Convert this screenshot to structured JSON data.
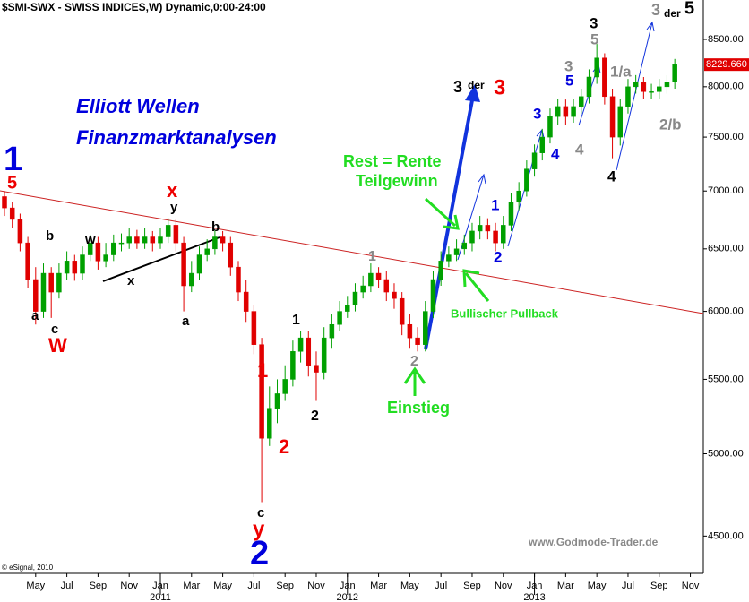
{
  "chart_data": {
    "type": "candlestick",
    "title": "$SMI-SWX - SWISS INDICES,W) Dynamic,0:00-24:00",
    "log_scale": true,
    "up_color": "#00a000",
    "down_color": "#e00000",
    "open": [
      6950,
      6850,
      6750,
      6550,
      6250,
      6000,
      6300,
      6150,
      6300,
      6400,
      6300,
      6450,
      6550,
      6400,
      6450,
      6550,
      6550,
      6600,
      6550,
      6600,
      6550,
      6600,
      6700,
      6550,
      6200,
      6300,
      6450,
      6500,
      6600,
      6550,
      6350,
      6150,
      6000,
      5750,
      5100,
      5300,
      5400,
      5500,
      5700,
      5800,
      5600,
      5550,
      5800,
      5900,
      6000,
      6050,
      6150,
      6200,
      6300,
      6250,
      6150,
      6100,
      5900,
      5800,
      5750,
      6000,
      6250,
      6400,
      6450,
      6500,
      6550,
      6650,
      6700,
      6650,
      6550,
      6700,
      6900,
      7000,
      7200,
      7350,
      7500,
      7700,
      7800,
      7700,
      7800,
      7900,
      8100,
      8300,
      7900,
      7500,
      7800,
      8000,
      8050,
      7950,
      7950,
      8000,
      8050
    ],
    "high": [
      7000,
      6900,
      6800,
      6600,
      6350,
      6380,
      6350,
      6380,
      6480,
      6450,
      6520,
      6620,
      6600,
      6550,
      6620,
      6630,
      6680,
      6660,
      6680,
      6650,
      6680,
      6760,
      6750,
      6600,
      6400,
      6520,
      6580,
      6660,
      6650,
      6600,
      6400,
      6250,
      6050,
      5800,
      5450,
      5500,
      5600,
      5780,
      5850,
      5850,
      5700,
      5880,
      5980,
      6080,
      6120,
      6220,
      6280,
      6380,
      6350,
      6320,
      6220,
      6150,
      5980,
      5880,
      6080,
      6320,
      6480,
      6520,
      6580,
      6620,
      6720,
      6780,
      6760,
      6720,
      6780,
      6980,
      7080,
      7280,
      7430,
      7580,
      7780,
      7880,
      7870,
      7880,
      7980,
      8180,
      8450,
      8350,
      7980,
      7880,
      8080,
      8120,
      8100,
      8030,
      8080,
      8120,
      8290
    ],
    "low": [
      6780,
      6680,
      6480,
      6180,
      5900,
      5950,
      5950,
      6100,
      6250,
      6240,
      6250,
      6400,
      6330,
      6350,
      6400,
      6480,
      6500,
      6500,
      6500,
      6480,
      6500,
      6550,
      6480,
      6000,
      6150,
      6250,
      6400,
      6450,
      6480,
      6280,
      6080,
      5920,
      5680,
      4700,
      5050,
      5200,
      5350,
      5450,
      5620,
      5520,
      5350,
      5500,
      5720,
      5850,
      5950,
      6000,
      6100,
      6150,
      6180,
      6080,
      6020,
      5820,
      5720,
      5700,
      5700,
      5950,
      6200,
      6350,
      6400,
      6450,
      6480,
      6580,
      6580,
      6480,
      6500,
      6650,
      6830,
      6950,
      7130,
      7280,
      7440,
      7620,
      7620,
      7640,
      7730,
      7830,
      8030,
      7820,
      7300,
      7420,
      7730,
      7930,
      7880,
      7880,
      7880,
      7930,
      7980
    ],
    "close": [
      6850,
      6750,
      6550,
      6250,
      6000,
      6300,
      6150,
      6300,
      6400,
      6300,
      6450,
      6550,
      6400,
      6450,
      6550,
      6550,
      6600,
      6550,
      6600,
      6550,
      6600,
      6700,
      6550,
      6200,
      6300,
      6450,
      6500,
      6600,
      6550,
      6350,
      6150,
      6000,
      5750,
      5100,
      5300,
      5400,
      5500,
      5700,
      5800,
      5600,
      5550,
      5800,
      5900,
      6000,
      6050,
      6150,
      6200,
      6300,
      6250,
      6150,
      6100,
      5900,
      5800,
      5750,
      6000,
      6250,
      6400,
      6450,
      6500,
      6550,
      6650,
      6700,
      6650,
      6550,
      6700,
      6900,
      7000,
      7200,
      7350,
      7500,
      7700,
      7800,
      7700,
      7800,
      7900,
      8100,
      8300,
      7900,
      7500,
      7800,
      8000,
      8050,
      7950,
      7950,
      8000,
      8050,
      8229.66
    ],
    "last_close_label": "8229.660",
    "ylim": [
      4290,
      8940
    ],
    "yticks": [
      {
        "value": 4500,
        "label": "4500.00"
      },
      {
        "value": 5000,
        "label": "5000.00"
      },
      {
        "value": 5500,
        "label": "5500.00"
      },
      {
        "value": 6000,
        "label": "6000.00"
      },
      {
        "value": 6500,
        "label": "6500.00"
      },
      {
        "value": 7000,
        "label": "7000.00"
      },
      {
        "value": 7500,
        "label": "7500.00"
      },
      {
        "value": 8000,
        "label": "8000.00"
      },
      {
        "value": 8500,
        "label": "8500.00"
      }
    ],
    "xlim": [
      -0.575,
      89.66
    ],
    "xticks": [
      {
        "value": 4,
        "label": "May"
      },
      {
        "value": 8,
        "label": "Jul"
      },
      {
        "value": 12,
        "label": "Sep"
      },
      {
        "value": 16,
        "label": "Nov"
      },
      {
        "value": 20,
        "label": "Jan"
      },
      {
        "value": 24,
        "label": "Mar"
      },
      {
        "value": 28,
        "label": "May"
      },
      {
        "value": 32,
        "label": "Jul"
      },
      {
        "value": 36,
        "label": "Sep"
      },
      {
        "value": 40,
        "label": "Nov"
      },
      {
        "value": 44,
        "label": "Jan"
      },
      {
        "value": 48,
        "label": "Mar"
      },
      {
        "value": 52,
        "label": "May"
      },
      {
        "value": 56,
        "label": "Jul"
      },
      {
        "value": 60,
        "label": "Sep"
      },
      {
        "value": 64,
        "label": "Nov"
      },
      {
        "value": 68,
        "label": "Jan"
      },
      {
        "value": 72,
        "label": "Mar"
      },
      {
        "value": 76,
        "label": "May"
      },
      {
        "value": 80,
        "label": "Jul"
      },
      {
        "value": 84,
        "label": "Sep"
      },
      {
        "value": 88,
        "label": "Nov"
      }
    ],
    "year_ticks": [
      {
        "value": 20,
        "label": "2011"
      },
      {
        "value": 44,
        "label": "2012"
      },
      {
        "value": 68,
        "label": "2013"
      }
    ],
    "annotations": [
      {
        "text": "Elliott Wellen",
        "color": "#0000dd"
      },
      {
        "text": "Finanzmarktanalysen",
        "color": "#0000dd"
      },
      {
        "text": "1",
        "color": "#0000dd"
      },
      {
        "text": "5",
        "color": "#ee0000"
      },
      {
        "text": "a",
        "color": "#000000"
      },
      {
        "text": "c",
        "color": "#000000"
      },
      {
        "text": "W",
        "color": "#ee0000"
      },
      {
        "text": "b",
        "color": "#000000"
      },
      {
        "text": "w",
        "color": "#000000"
      },
      {
        "text": "x",
        "color": "#000000"
      },
      {
        "text": "y",
        "color": "#000000"
      },
      {
        "text": "x",
        "color": "#ee0000"
      },
      {
        "text": "b",
        "color": "#000000"
      },
      {
        "text": "a",
        "color": "#000000"
      },
      {
        "text": "1",
        "color": "#ee0000"
      },
      {
        "text": "c",
        "color": "#000000"
      },
      {
        "text": "y",
        "color": "#ee0000"
      },
      {
        "text": "2",
        "color": "#0000dd"
      },
      {
        "text": "2",
        "color": "#ee0000"
      },
      {
        "text": "1",
        "color": "#000000"
      },
      {
        "text": "2",
        "color": "#000000"
      },
      {
        "text": "1",
        "color": "#888888"
      },
      {
        "text": "2",
        "color": "#888888"
      },
      {
        "text": "Einstieg",
        "color": "#22dd22"
      },
      {
        "text": "Bullischer Pullback",
        "color": "#22dd22"
      },
      {
        "text": "Rest = Rente",
        "color": "#22dd22"
      },
      {
        "text": "Teilgewinn",
        "color": "#22dd22"
      },
      {
        "text": "1",
        "color": "#0000dd"
      },
      {
        "text": "2",
        "color": "#0000dd"
      },
      {
        "text": "3",
        "color": "#000000"
      },
      {
        "text": "der",
        "color": "#000000"
      },
      {
        "text": "3",
        "color": "#ee0000"
      },
      {
        "text": "3",
        "color": "#0000dd"
      },
      {
        "text": "4",
        "color": "#0000dd"
      },
      {
        "text": "5",
        "color": "#0000dd"
      },
      {
        "text": "3",
        "color": "#888888"
      },
      {
        "text": "4",
        "color": "#888888"
      },
      {
        "text": "3",
        "color": "#000000"
      },
      {
        "text": "5",
        "color": "#888888"
      },
      {
        "text": "1/a",
        "color": "#888888"
      },
      {
        "text": "2/b",
        "color": "#888888"
      },
      {
        "text": "4",
        "color": "#000000"
      },
      {
        "text": "3",
        "color": "#888888"
      },
      {
        "text": "der",
        "color": "#000000"
      },
      {
        "text": "5",
        "color": "#000000"
      }
    ],
    "watermark": "www.Godmode-Trader.de",
    "source": "© eSignal, 2010"
  }
}
